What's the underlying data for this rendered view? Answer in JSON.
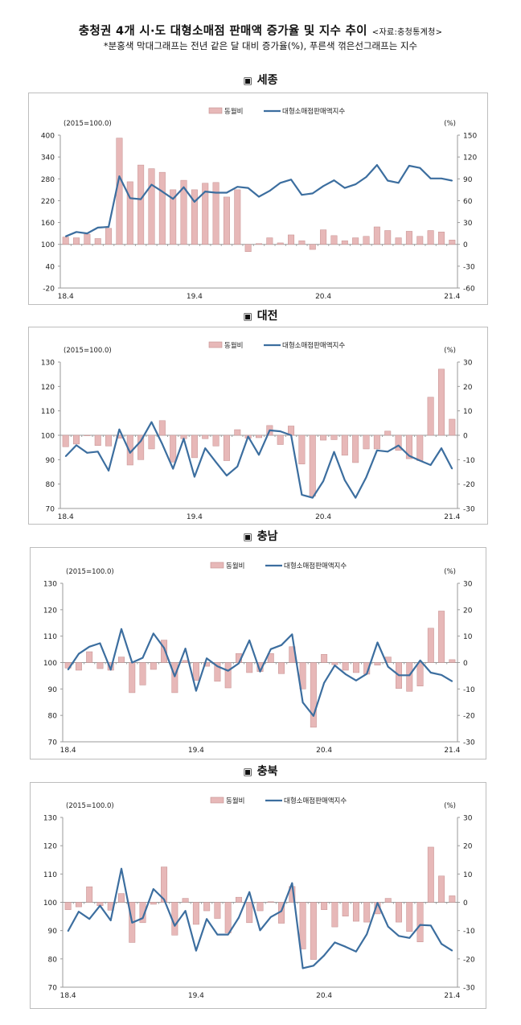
{
  "header": {
    "title": "충청권 4개 시·도 대형소매점 판매액 증가율 및 지수 추이",
    "source": "<자료:충청통계청>",
    "subtitle": "*분홍색 막대그래프는 전년 같은 달 대비 증가율(%), 푸른색 꺾은선그래프는 지수"
  },
  "colors": {
    "bar_fill": "#e7b8b8",
    "bar_stroke": "#c48e8e",
    "line": "#3c6e9f",
    "axis": "#9a9a9a"
  },
  "chart_data": [
    {
      "type": "bar+line",
      "title": "세종",
      "section_marker": "▣",
      "left_unit": "(2015=100.0)",
      "right_unit": "(%)",
      "legend": [
        "동월비",
        "대형소매점판매액지수"
      ],
      "legend_placement": "top-center",
      "x_tick_labels": [
        {
          "index": 0,
          "label": "18.4"
        },
        {
          "index": 12,
          "label": "19.4"
        },
        {
          "index": 24,
          "label": "20.4"
        },
        {
          "index": 36,
          "label": "21.4"
        }
      ],
      "left_ylim": [
        -20,
        400
      ],
      "left_ticks": [
        400,
        340,
        280,
        220,
        160,
        100,
        40,
        -20
      ],
      "right_ylim": [
        -60,
        150
      ],
      "right_ticks": [
        150,
        120,
        90,
        60,
        30,
        0,
        -30,
        -60
      ],
      "series": [
        {
          "name": "동월비",
          "axis": "right",
          "type": "bar",
          "values": [
            10,
            9,
            14,
            8,
            22,
            146,
            86,
            109,
            104,
            99,
            75,
            88,
            75,
            84,
            85,
            65,
            75,
            -10,
            1,
            9,
            2,
            13,
            5,
            -7,
            20,
            12,
            5,
            9,
            11,
            24,
            19,
            9,
            18,
            11,
            19,
            17,
            6
          ]
        },
        {
          "name": "대형소매점판매액지수",
          "axis": "left",
          "type": "line",
          "values": [
            122,
            134,
            130,
            146,
            148,
            287,
            227,
            224,
            264,
            245,
            225,
            257,
            217,
            245,
            242,
            242,
            258,
            255,
            231,
            247,
            269,
            278,
            236,
            240,
            260,
            276,
            255,
            265,
            285,
            318,
            275,
            269,
            316,
            310,
            281,
            281,
            275
          ]
        }
      ]
    },
    {
      "type": "bar+line",
      "title": "대전",
      "section_marker": "▣",
      "left_unit": "(2015=100.0)",
      "right_unit": "(%)",
      "legend": [
        "동월비",
        "대형소매점판매액지수"
      ],
      "legend_placement": "top-center",
      "x_tick_labels": [
        {
          "index": 0,
          "label": "18.4"
        },
        {
          "index": 12,
          "label": "19.4"
        },
        {
          "index": 24,
          "label": "20.4"
        },
        {
          "index": 36,
          "label": "21.4"
        }
      ],
      "left_ylim": [
        70,
        130
      ],
      "left_ticks": [
        130,
        120,
        110,
        100,
        90,
        80,
        70
      ],
      "right_ylim": [
        -30,
        30
      ],
      "right_ticks": [
        30,
        20,
        10,
        0,
        -10,
        -20,
        -30
      ],
      "series": [
        {
          "name": "동월비",
          "axis": "right",
          "type": "bar",
          "values": [
            -4.7,
            -3.6,
            -0.2,
            -4.2,
            -4.4,
            -1.2,
            -12.2,
            -10,
            -5.6,
            6,
            -11,
            -1.4,
            -9.2,
            -1.4,
            -4.4,
            -10.4,
            2.3,
            -1.2,
            -1,
            4,
            -3.8,
            3.8,
            -11.8,
            -25,
            -2,
            -1.8,
            -8.2,
            -11.2,
            -5.6,
            -5.6,
            1.7,
            -6.2,
            -9.6,
            -10.4,
            15.6,
            27.1,
            6.6
          ]
        },
        {
          "name": "대형소매점판매액지수",
          "axis": "left",
          "type": "line",
          "values": [
            91.4,
            95.9,
            92.8,
            93.3,
            85.5,
            102.4,
            92.8,
            97.6,
            105.4,
            96.4,
            86.3,
            98.6,
            83,
            94.7,
            89,
            83.5,
            87.2,
            99.5,
            92,
            102,
            101.6,
            100,
            75.6,
            74.4,
            81.2,
            93.2,
            81.6,
            74.4,
            82.8,
            93.8,
            93.3,
            95.8,
            91.6,
            89.6,
            87.8,
            94.7,
            86.3
          ]
        }
      ]
    },
    {
      "type": "bar+line",
      "title": "충남",
      "section_marker": "▣",
      "left_unit": "(2015=100.0)",
      "right_unit": "(%)",
      "legend": [
        "동월비",
        "대형소매점판매액지수"
      ],
      "legend_placement": "top-center",
      "x_tick_labels": [
        {
          "index": 0,
          "label": "18.4"
        },
        {
          "index": 12,
          "label": "19.4"
        },
        {
          "index": 24,
          "label": "20.4"
        },
        {
          "index": 36,
          "label": "21.4"
        }
      ],
      "left_ylim": [
        70,
        130
      ],
      "left_ticks": [
        130,
        120,
        110,
        100,
        90,
        80,
        70
      ],
      "right_ylim": [
        -30,
        30
      ],
      "right_ticks": [
        30,
        20,
        10,
        0,
        -10,
        -20,
        -30
      ],
      "series": [
        {
          "name": "동월비",
          "axis": "right",
          "type": "bar",
          "values": [
            -2.1,
            -2.9,
            4.1,
            -2.3,
            -2.9,
            2.1,
            -11.4,
            -8.5,
            -2.6,
            8.5,
            -11.4,
            0.8,
            -6.8,
            -1.4,
            -7.1,
            -9.6,
            3.4,
            -3.8,
            -3.4,
            3.4,
            -4.2,
            6,
            -10,
            -24.5,
            3.1,
            -0.8,
            -2.9,
            -3.8,
            -4.4,
            -1,
            2.1,
            -9.8,
            -10.9,
            -8.9,
            13,
            19.5,
            1.1
          ]
        },
        {
          "name": "대형소매점판매액지수",
          "axis": "left",
          "type": "line",
          "values": [
            97.3,
            103.3,
            106,
            107.3,
            97.3,
            112.7,
            100,
            101.8,
            111,
            105.5,
            94.8,
            105.3,
            89.3,
            101.6,
            98.6,
            96.9,
            99.7,
            108.4,
            96.6,
            105.1,
            106.6,
            110.7,
            84.9,
            79.8,
            92.3,
            98.9,
            95.6,
            93.2,
            95.7,
            107.6,
            98.4,
            95.2,
            95.2,
            100.8,
            96.2,
            95.3,
            92.9
          ]
        }
      ]
    },
    {
      "type": "bar+line",
      "title": "충북",
      "section_marker": "▣",
      "left_unit": "(2015=100.0)",
      "right_unit": "(%)",
      "legend": [
        "동월비",
        "대형소매점판매액지수"
      ],
      "legend_placement": "top-center",
      "x_tick_labels": [
        {
          "index": 0,
          "label": "18.4"
        },
        {
          "index": 12,
          "label": "19.4"
        },
        {
          "index": 24,
          "label": "20.4"
        },
        {
          "index": 36,
          "label": "21.4"
        }
      ],
      "left_ylim": [
        70,
        130
      ],
      "left_ticks": [
        130,
        120,
        110,
        100,
        90,
        80,
        70
      ],
      "right_ylim": [
        -30,
        30
      ],
      "right_ticks": [
        30,
        20,
        10,
        0,
        -10,
        -20,
        -30
      ],
      "series": [
        {
          "name": "동월비",
          "axis": "right",
          "type": "bar",
          "values": [
            -2.6,
            -1.6,
            5.5,
            -1.2,
            -2.8,
            3.1,
            -14.2,
            -7.2,
            -0.7,
            12.5,
            -11.6,
            1.4,
            -7.8,
            -3,
            -5.7,
            -10.8,
            1.8,
            -7.2,
            -3,
            0.2,
            -7.4,
            5.6,
            -16.5,
            -20.2,
            -2.6,
            -8.7,
            -4.9,
            -6.7,
            -7,
            -4.1,
            1.4,
            -7,
            -10.3,
            -14,
            19.5,
            9.3,
            2.3
          ]
        },
        {
          "name": "대형소매점판매액지수",
          "axis": "left",
          "type": "line",
          "values": [
            89.8,
            96.7,
            94.1,
            98.8,
            93.6,
            111.9,
            92.8,
            94.4,
            104.7,
            101,
            91.7,
            97,
            82.9,
            94.1,
            88.6,
            88.6,
            94.6,
            103.6,
            90.1,
            94.8,
            96.9,
            106.8,
            76.7,
            77.6,
            81.2,
            85.8,
            84.3,
            82.6,
            88.7,
            99.8,
            91.4,
            88.1,
            87.4,
            92,
            91.8,
            85.3,
            82.9
          ]
        }
      ]
    }
  ]
}
